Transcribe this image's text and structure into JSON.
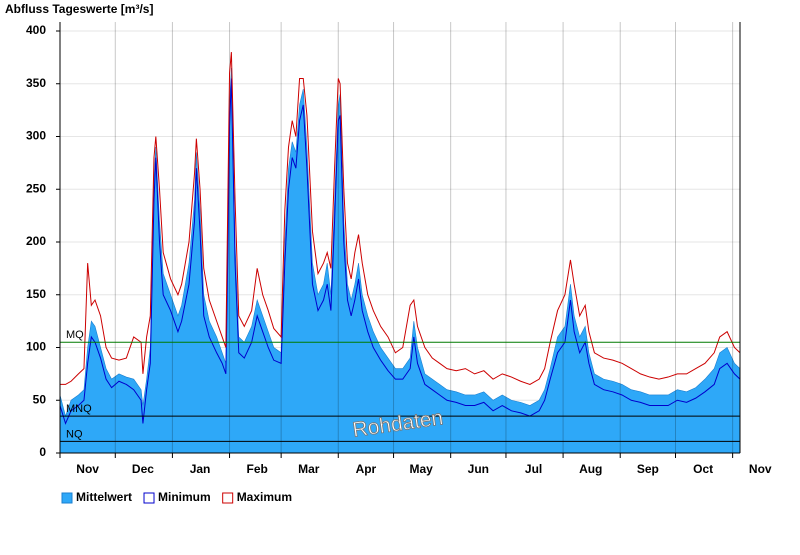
{
  "chart_data": {
    "type": "area_line",
    "title": "Abfluss Tageswerte [m³/s]",
    "annotation": "Rohdaten",
    "xlim": [
      0,
      369
    ],
    "xticks": [
      {
        "value": 0,
        "label": "Nov"
      },
      {
        "value": 30,
        "label": "Dec"
      },
      {
        "value": 61,
        "label": "Jan"
      },
      {
        "value": 92,
        "label": "Feb"
      },
      {
        "value": 120,
        "label": "Mar"
      },
      {
        "value": 151,
        "label": "Apr"
      },
      {
        "value": 181,
        "label": "May"
      },
      {
        "value": 212,
        "label": "Jun"
      },
      {
        "value": 242,
        "label": "Jul"
      },
      {
        "value": 273,
        "label": "Aug"
      },
      {
        "value": 304,
        "label": "Sep"
      },
      {
        "value": 334,
        "label": "Oct"
      },
      {
        "value": 365,
        "label": "Nov"
      }
    ],
    "ylim": [
      0,
      400
    ],
    "yticks": [
      0,
      50,
      100,
      150,
      200,
      250,
      300,
      350,
      400
    ],
    "grid": true,
    "legend": "bottom-left",
    "reference_lines": [
      {
        "label": "MQ",
        "value": 105,
        "color": "#007a00"
      },
      {
        "label": "MNQ",
        "value": 35,
        "color": "#000000"
      },
      {
        "label": "NQ",
        "value": 11,
        "color": "#000000"
      }
    ],
    "x": [
      0,
      3,
      6,
      10,
      13,
      15,
      17,
      19,
      22,
      25,
      28,
      32,
      36,
      40,
      44,
      45,
      47,
      49,
      51,
      52,
      54,
      56,
      60,
      64,
      66,
      70,
      73,
      74,
      76,
      78,
      81,
      85,
      88,
      90,
      91,
      92,
      93,
      95,
      97,
      100,
      104,
      107,
      110,
      113,
      116,
      120,
      122,
      124,
      126,
      128,
      130,
      132,
      134,
      137,
      140,
      143,
      145,
      147,
      149,
      151,
      152,
      154,
      156,
      158,
      160,
      162,
      164,
      167,
      170,
      174,
      178,
      182,
      186,
      190,
      192,
      194,
      198,
      202,
      206,
      210,
      215,
      220,
      225,
      230,
      235,
      240,
      245,
      250,
      255,
      260,
      263,
      266,
      270,
      274,
      277,
      279,
      282,
      285,
      287,
      290,
      295,
      300,
      305,
      310,
      315,
      320,
      325,
      330,
      335,
      340,
      345,
      350,
      355,
      358,
      362,
      366,
      369
    ],
    "series": [
      {
        "name": "Mittelwert",
        "style": "area",
        "color": "#2ea8f8",
        "values": [
          55,
          35,
          50,
          55,
          60,
          100,
          125,
          120,
          100,
          80,
          70,
          75,
          72,
          70,
          60,
          45,
          70,
          100,
          260,
          290,
          220,
          170,
          150,
          130,
          140,
          180,
          240,
          285,
          230,
          150,
          125,
          110,
          95,
          85,
          200,
          330,
          365,
          200,
          110,
          105,
          120,
          145,
          130,
          115,
          100,
          95,
          200,
          270,
          295,
          285,
          330,
          345,
          290,
          180,
          150,
          160,
          180,
          150,
          240,
          330,
          340,
          220,
          160,
          145,
          160,
          180,
          150,
          130,
          115,
          100,
          90,
          80,
          80,
          90,
          125,
          100,
          75,
          70,
          65,
          60,
          58,
          55,
          55,
          58,
          50,
          55,
          50,
          48,
          45,
          50,
          60,
          80,
          110,
          120,
          160,
          130,
          110,
          120,
          95,
          75,
          70,
          68,
          65,
          60,
          58,
          55,
          55,
          55,
          60,
          58,
          62,
          70,
          80,
          95,
          100,
          85,
          80
        ]
      },
      {
        "name": "Minimum",
        "style": "line",
        "color": "#0000cc",
        "values": [
          45,
          28,
          40,
          45,
          50,
          85,
          110,
          105,
          90,
          70,
          62,
          68,
          65,
          60,
          50,
          28,
          60,
          85,
          240,
          280,
          200,
          150,
          135,
          115,
          125,
          160,
          220,
          270,
          210,
          130,
          110,
          95,
          85,
          75,
          180,
          310,
          355,
          180,
          95,
          90,
          105,
          130,
          115,
          100,
          88,
          85,
          180,
          250,
          280,
          270,
          315,
          330,
          270,
          160,
          135,
          145,
          160,
          135,
          220,
          315,
          320,
          200,
          145,
          130,
          145,
          165,
          135,
          115,
          100,
          88,
          78,
          70,
          70,
          80,
          110,
          85,
          65,
          60,
          55,
          50,
          48,
          45,
          45,
          48,
          40,
          45,
          40,
          38,
          35,
          40,
          50,
          70,
          95,
          105,
          145,
          115,
          95,
          105,
          85,
          65,
          60,
          58,
          55,
          50,
          48,
          45,
          45,
          45,
          50,
          48,
          52,
          58,
          65,
          80,
          85,
          75,
          70
        ]
      },
      {
        "name": "Maximum",
        "style": "line",
        "color": "#cc0000",
        "values": [
          65,
          65,
          68,
          75,
          80,
          180,
          140,
          145,
          130,
          100,
          90,
          88,
          90,
          110,
          105,
          75,
          110,
          130,
          280,
          300,
          250,
          190,
          165,
          150,
          160,
          200,
          265,
          298,
          250,
          175,
          145,
          125,
          110,
          100,
          230,
          360,
          380,
          240,
          130,
          120,
          135,
          175,
          150,
          135,
          118,
          110,
          230,
          290,
          315,
          300,
          355,
          355,
          320,
          210,
          170,
          180,
          190,
          175,
          270,
          355,
          350,
          250,
          180,
          165,
          190,
          207,
          180,
          150,
          135,
          120,
          110,
          95,
          100,
          140,
          145,
          120,
          100,
          90,
          85,
          80,
          78,
          80,
          75,
          78,
          70,
          75,
          72,
          68,
          65,
          70,
          80,
          105,
          135,
          150,
          183,
          160,
          130,
          140,
          115,
          95,
          90,
          88,
          85,
          80,
          75,
          72,
          70,
          72,
          75,
          75,
          80,
          85,
          95,
          110,
          115,
          100,
          95
        ]
      }
    ]
  }
}
